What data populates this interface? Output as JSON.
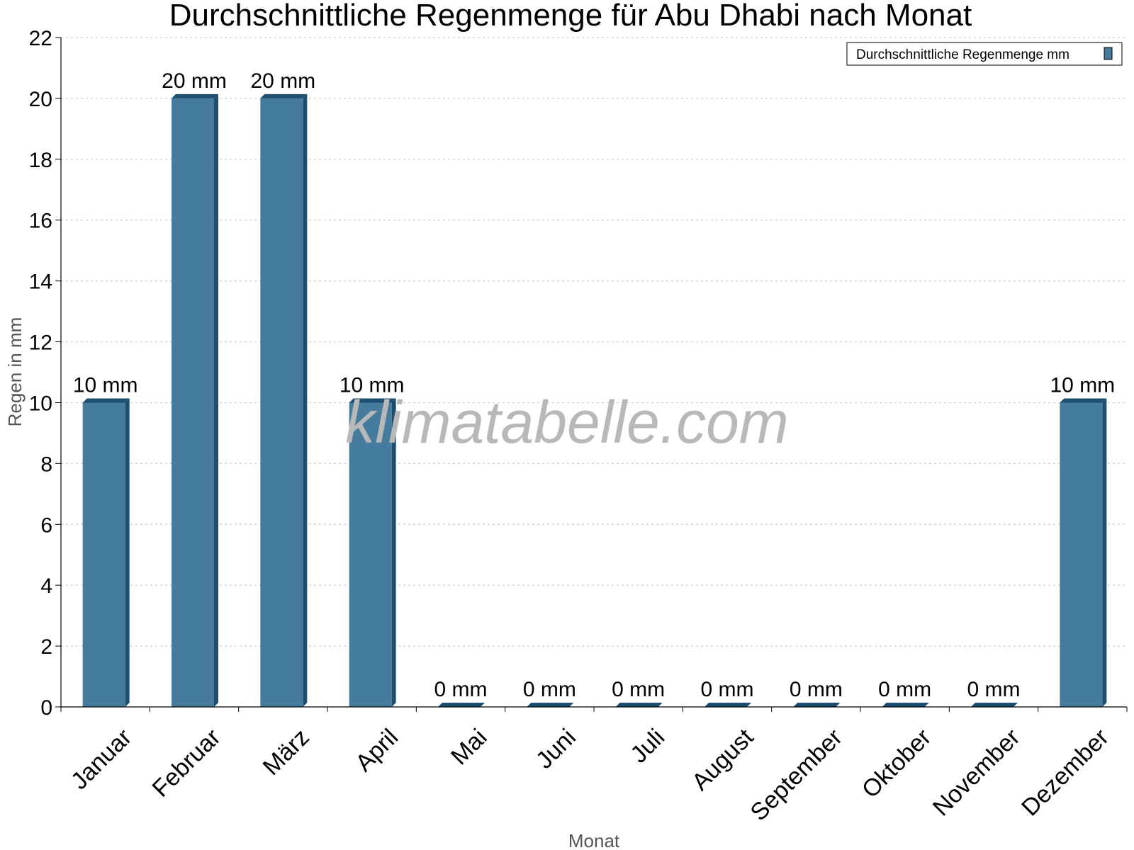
{
  "chart_data": {
    "type": "bar",
    "title": "Durchschnittliche Regenmenge für Abu Dhabi nach Monat",
    "xlabel": "Monat",
    "ylabel": "Regen in mm",
    "ylim": [
      0,
      22
    ],
    "yticks": [
      0,
      2,
      4,
      6,
      8,
      10,
      12,
      14,
      16,
      18,
      20,
      22
    ],
    "grid": true,
    "legend_position": "top-right",
    "categories": [
      "Januar",
      "Februar",
      "März",
      "April",
      "Mai",
      "Juni",
      "Juli",
      "August",
      "September",
      "Oktober",
      "November",
      "Dezember"
    ],
    "series": [
      {
        "name": "Durchschnittliche Regenmenge mm",
        "color": "#457b9d",
        "values": [
          10,
          20,
          20,
          10,
          0,
          0,
          0,
          0,
          0,
          0,
          0,
          10
        ],
        "value_labels": [
          "10 mm",
          "20 mm",
          "20 mm",
          "10 mm",
          "0 mm",
          "0 mm",
          "0 mm",
          "0 mm",
          "0 mm",
          "0 mm",
          "0 mm",
          "10 mm"
        ]
      }
    ]
  },
  "watermark": "klimatabelle.com",
  "colors": {
    "bar_face": "#457b9d",
    "bar_side": "#1d4e6f",
    "grid": "#cccccc",
    "axis": "#000000"
  }
}
